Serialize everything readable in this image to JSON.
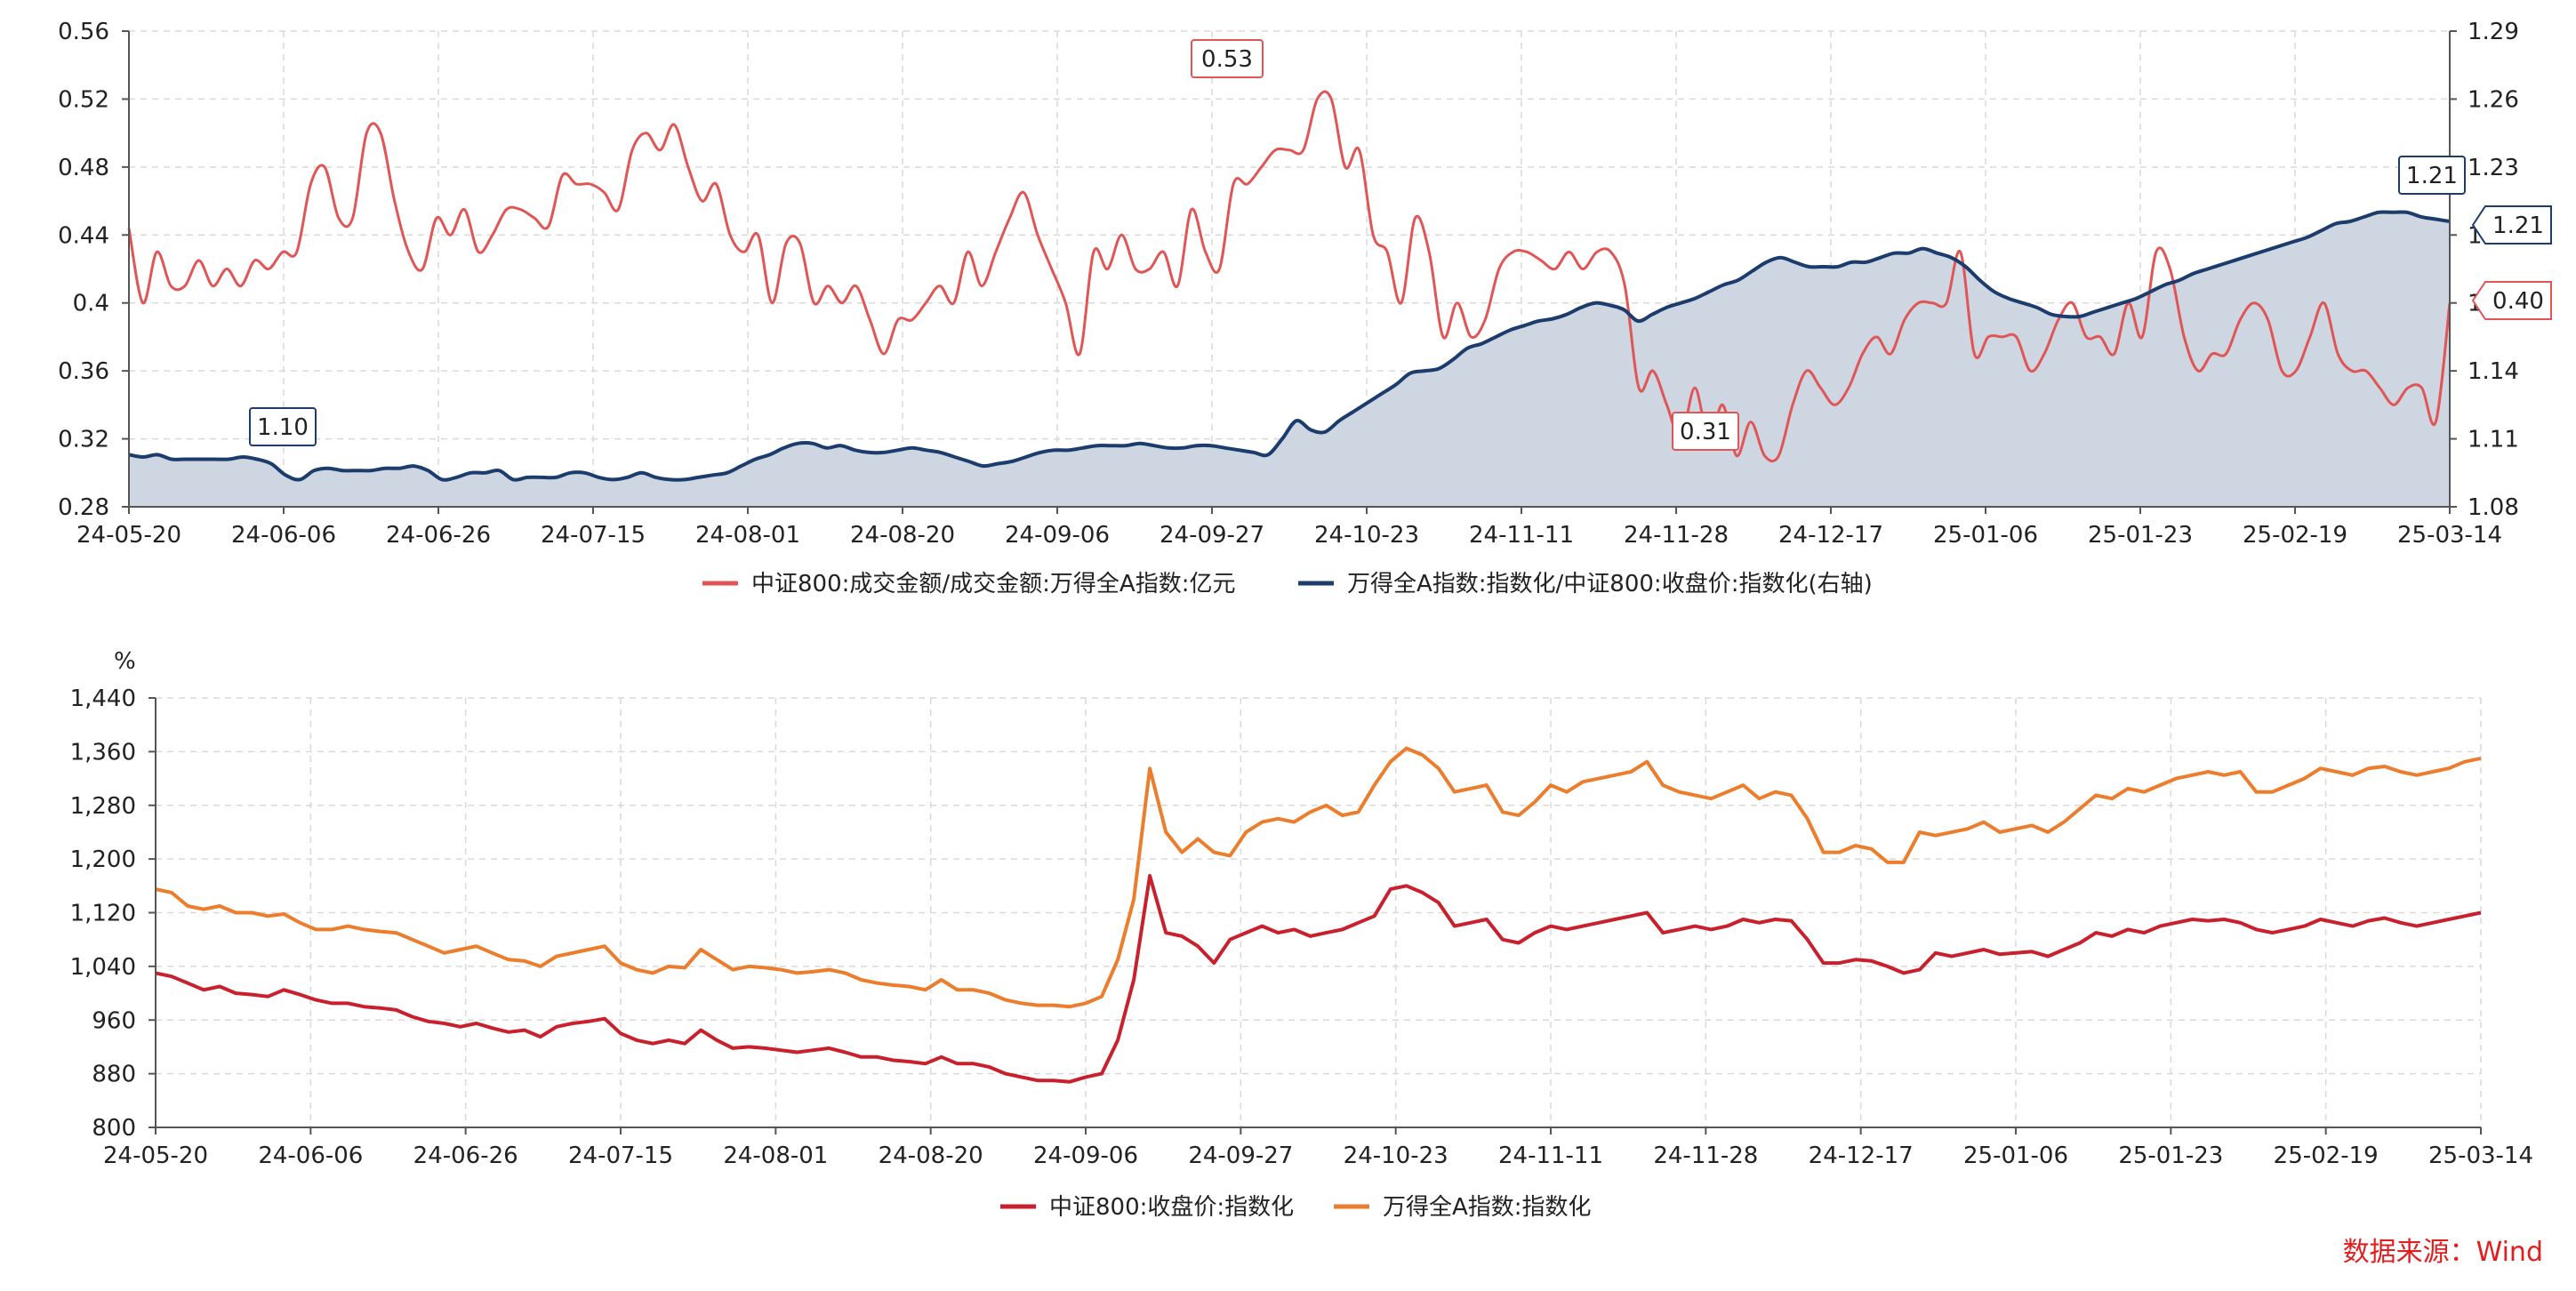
{
  "source_note": "数据来源：Wind",
  "chart_data": [
    {
      "type": "line",
      "x_ticks": [
        "24-05-20",
        "24-06-06",
        "24-06-26",
        "24-07-15",
        "24-08-01",
        "24-08-20",
        "24-09-06",
        "24-09-27",
        "24-10-23",
        "24-11-11",
        "24-11-28",
        "24-12-17",
        "25-01-06",
        "25-01-23",
        "25-02-19",
        "25-03-14"
      ],
      "y_left": {
        "ticks": [
          "0.56",
          "0.52",
          "0.48",
          "0.44",
          "0.4",
          "0.36",
          "0.32",
          "0.28"
        ],
        "lim": [
          0.28,
          0.56
        ]
      },
      "y_right": {
        "ticks": [
          "1.29",
          "1.26",
          "1.23",
          "1.2",
          "1.17",
          "1.14",
          "1.11",
          "1.08"
        ],
        "lim": [
          1.08,
          1.29
        ]
      },
      "series": [
        {
          "name": "中证800:成交金额/成交金额:万得全A指数:亿元",
          "axis": "left",
          "color": "#e05555",
          "values": [
            0.444,
            0.4,
            0.43,
            0.41,
            0.41,
            0.425,
            0.41,
            0.42,
            0.41,
            0.425,
            0.42,
            0.43,
            0.43,
            0.47,
            0.48,
            0.45,
            0.45,
            0.5,
            0.5,
            0.46,
            0.43,
            0.42,
            0.45,
            0.44,
            0.455,
            0.43,
            0.44,
            0.455,
            0.455,
            0.45,
            0.445,
            0.475,
            0.47,
            0.47,
            0.465,
            0.455,
            0.49,
            0.5,
            0.49,
            0.505,
            0.48,
            0.46,
            0.47,
            0.44,
            0.43,
            0.44,
            0.4,
            0.435,
            0.435,
            0.4,
            0.41,
            0.4,
            0.41,
            0.39,
            0.37,
            0.39,
            0.39,
            0.4,
            0.41,
            0.4,
            0.43,
            0.41,
            0.43,
            0.45,
            0.465,
            0.44,
            0.42,
            0.4,
            0.37,
            0.43,
            0.42,
            0.44,
            0.42,
            0.42,
            0.43,
            0.41,
            0.455,
            0.43,
            0.42,
            0.47,
            0.47,
            0.48,
            0.49,
            0.49,
            0.49,
            0.52,
            0.52,
            0.48,
            0.49,
            0.44,
            0.43,
            0.4,
            0.45,
            0.43,
            0.38,
            0.4,
            0.38,
            0.39,
            0.42,
            0.43,
            0.43,
            0.425,
            0.42,
            0.43,
            0.42,
            0.43,
            0.43,
            0.41,
            0.35,
            0.36,
            0.34,
            0.32,
            0.35,
            0.32,
            0.34,
            0.31,
            0.33,
            0.31,
            0.31,
            0.34,
            0.36,
            0.35,
            0.34,
            0.35,
            0.37,
            0.38,
            0.37,
            0.39,
            0.4,
            0.4,
            0.4,
            0.43,
            0.37,
            0.38,
            0.38,
            0.38,
            0.36,
            0.37,
            0.39,
            0.4,
            0.38,
            0.38,
            0.37,
            0.4,
            0.38,
            0.43,
            0.42,
            0.38,
            0.36,
            0.37,
            0.37,
            0.39,
            0.4,
            0.39,
            0.36,
            0.36,
            0.38,
            0.4,
            0.37,
            0.36,
            0.36,
            0.35,
            0.34,
            0.35,
            0.35,
            0.33,
            0.4
          ]
        },
        {
          "name": "万得全A指数:指数化/中证800:收盘价:指数化(右轴)",
          "axis": "right",
          "color": "#1c3c6e",
          "fill": "#cdd6e1",
          "values": [
            1.103,
            1.102,
            1.103,
            1.101,
            1.101,
            1.101,
            1.101,
            1.101,
            1.102,
            1.101,
            1.099,
            1.094,
            1.092,
            1.096,
            1.097,
            1.096,
            1.096,
            1.096,
            1.097,
            1.097,
            1.098,
            1.096,
            1.092,
            1.093,
            1.095,
            1.095,
            1.096,
            1.092,
            1.093,
            1.093,
            1.093,
            1.095,
            1.095,
            1.093,
            1.092,
            1.093,
            1.095,
            1.093,
            1.092,
            1.092,
            1.093,
            1.094,
            1.095,
            1.098,
            1.101,
            1.103,
            1.106,
            1.108,
            1.108,
            1.106,
            1.107,
            1.105,
            1.104,
            1.104,
            1.105,
            1.106,
            1.105,
            1.104,
            1.102,
            1.1,
            1.098,
            1.099,
            1.1,
            1.102,
            1.104,
            1.105,
            1.105,
            1.106,
            1.107,
            1.107,
            1.107,
            1.108,
            1.107,
            1.106,
            1.106,
            1.107,
            1.107,
            1.106,
            1.105,
            1.104,
            1.103,
            1.11,
            1.118,
            1.114,
            1.113,
            1.118,
            1.122,
            1.126,
            1.13,
            1.134,
            1.139,
            1.14,
            1.141,
            1.145,
            1.15,
            1.152,
            1.155,
            1.158,
            1.16,
            1.162,
            1.163,
            1.165,
            1.168,
            1.17,
            1.169,
            1.167,
            1.162,
            1.165,
            1.168,
            1.17,
            1.172,
            1.175,
            1.178,
            1.18,
            1.184,
            1.188,
            1.19,
            1.188,
            1.186,
            1.186,
            1.186,
            1.188,
            1.188,
            1.19,
            1.192,
            1.192,
            1.194,
            1.192,
            1.19,
            1.186,
            1.18,
            1.175,
            1.172,
            1.17,
            1.168,
            1.165,
            1.164,
            1.164,
            1.166,
            1.168,
            1.17,
            1.172,
            1.175,
            1.178,
            1.18,
            1.183,
            1.185,
            1.187,
            1.189,
            1.191,
            1.193,
            1.195,
            1.197,
            1.199,
            1.202,
            1.205,
            1.206,
            1.208,
            1.21,
            1.21,
            1.21,
            1.208,
            1.207,
            1.206
          ]
        }
      ],
      "annotations": [
        {
          "label": "0.53",
          "series": 0
        },
        {
          "label": "1.10",
          "series": 1
        },
        {
          "label": "0.31",
          "series": 0
        },
        {
          "label": "1.21",
          "series": 1
        },
        {
          "label": "1.21",
          "series": 1
        },
        {
          "label": "0.40",
          "series": 0
        }
      ]
    },
    {
      "type": "line",
      "unit": "%",
      "x_ticks": [
        "24-05-20",
        "24-06-06",
        "24-06-26",
        "24-07-15",
        "24-08-01",
        "24-08-20",
        "24-09-06",
        "24-09-27",
        "24-10-23",
        "24-11-11",
        "24-11-28",
        "24-12-17",
        "25-01-06",
        "25-01-23",
        "25-02-19",
        "25-03-14"
      ],
      "y_left": {
        "ticks": [
          "1,440",
          "1,360",
          "1,280",
          "1,200",
          "1,120",
          "1,040",
          "960",
          "880",
          "800"
        ],
        "lim": [
          800,
          1440
        ]
      },
      "series": [
        {
          "name": "中证800:收盘价:指数化",
          "color": "#c8202c",
          "values": [
            1030,
            1025,
            1015,
            1005,
            1010,
            1000,
            998,
            995,
            1005,
            998,
            990,
            985,
            985,
            980,
            978,
            975,
            965,
            958,
            955,
            950,
            955,
            948,
            942,
            945,
            935,
            950,
            955,
            958,
            962,
            940,
            930,
            925,
            930,
            925,
            945,
            930,
            918,
            920,
            918,
            915,
            912,
            915,
            918,
            912,
            905,
            905,
            900,
            898,
            895,
            905,
            895,
            895,
            890,
            880,
            875,
            870,
            870,
            868,
            875,
            880,
            930,
            1020,
            1175,
            1090,
            1085,
            1070,
            1045,
            1080,
            1090,
            1100,
            1090,
            1095,
            1085,
            1090,
            1095,
            1105,
            1115,
            1155,
            1160,
            1150,
            1135,
            1100,
            1105,
            1110,
            1080,
            1075,
            1090,
            1100,
            1095,
            1100,
            1105,
            1110,
            1115,
            1120,
            1090,
            1095,
            1100,
            1095,
            1100,
            1110,
            1105,
            1110,
            1108,
            1080,
            1045,
            1045,
            1050,
            1048,
            1040,
            1030,
            1035,
            1060,
            1055,
            1060,
            1065,
            1058,
            1060,
            1062,
            1055,
            1065,
            1075,
            1090,
            1085,
            1095,
            1090,
            1100,
            1105,
            1110,
            1108,
            1110,
            1105,
            1095,
            1090,
            1095,
            1100,
            1110,
            1105,
            1100,
            1108,
            1112,
            1105,
            1100,
            1105,
            1110,
            1115,
            1120
          ]
        },
        {
          "name": "万得全A指数:指数化",
          "color": "#ec7d2c",
          "values": [
            1155,
            1150,
            1130,
            1125,
            1130,
            1120,
            1120,
            1115,
            1118,
            1105,
            1095,
            1095,
            1100,
            1095,
            1092,
            1090,
            1080,
            1070,
            1060,
            1065,
            1070,
            1060,
            1050,
            1048,
            1040,
            1055,
            1060,
            1065,
            1070,
            1045,
            1035,
            1030,
            1040,
            1038,
            1065,
            1050,
            1035,
            1040,
            1038,
            1035,
            1030,
            1032,
            1035,
            1030,
            1020,
            1015,
            1012,
            1010,
            1005,
            1020,
            1005,
            1005,
            1000,
            990,
            985,
            982,
            982,
            980,
            985,
            995,
            1050,
            1140,
            1335,
            1240,
            1210,
            1230,
            1210,
            1205,
            1240,
            1255,
            1260,
            1255,
            1270,
            1280,
            1265,
            1270,
            1310,
            1345,
            1365,
            1355,
            1335,
            1300,
            1305,
            1310,
            1270,
            1265,
            1285,
            1310,
            1300,
            1315,
            1320,
            1325,
            1330,
            1345,
            1310,
            1300,
            1295,
            1290,
            1300,
            1310,
            1290,
            1300,
            1295,
            1260,
            1210,
            1210,
            1220,
            1215,
            1195,
            1195,
            1240,
            1235,
            1240,
            1245,
            1255,
            1240,
            1245,
            1250,
            1240,
            1255,
            1275,
            1295,
            1290,
            1305,
            1300,
            1310,
            1320,
            1325,
            1330,
            1325,
            1330,
            1300,
            1300,
            1310,
            1320,
            1335,
            1330,
            1325,
            1335,
            1338,
            1330,
            1325,
            1330,
            1335,
            1345,
            1350
          ]
        }
      ]
    }
  ]
}
